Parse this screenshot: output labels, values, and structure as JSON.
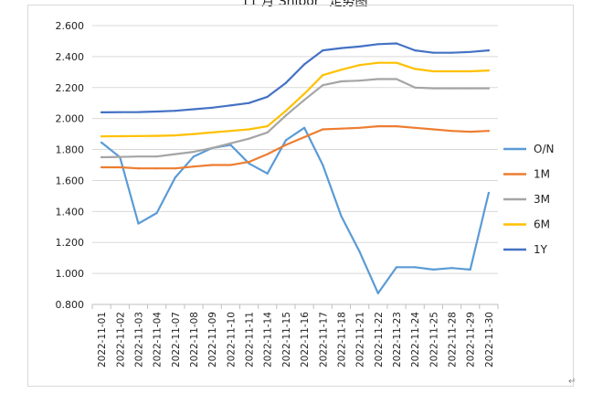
{
  "document": {
    "title": "\"11 月 Shibor\" 走势图",
    "paragraph_mark": "↵"
  },
  "chart_data": {
    "type": "line",
    "title": "",
    "xlabel": "",
    "ylabel": "",
    "ylim": [
      0.8,
      2.6
    ],
    "yticks": [
      "0.800",
      "1.000",
      "1.200",
      "1.400",
      "1.600",
      "1.800",
      "2.000",
      "2.200",
      "2.400",
      "2.600"
    ],
    "grid": true,
    "legend_position": "right",
    "x_tick_labels": [
      "2022-11-01",
      "2022-11-02",
      "2022-11-03",
      "2022-11-04",
      "2022-11-07",
      "2022-11-08",
      "2022-11-09",
      "2022-11-10",
      "2022-11-11",
      "2022-11-14",
      "2022-11-15",
      "2022-11-16",
      "2022-11-17",
      "2022-11-18",
      "2022-11-21",
      "2022-11-22",
      "2022-11-23",
      "2022-11-24",
      "2022-11-25",
      "2022-11-28",
      "2022-11-29",
      "2022-11-30"
    ],
    "series": [
      {
        "name": "O/N",
        "color": "#5b9bd5",
        "values": [
          1.845,
          1.75,
          1.322,
          1.39,
          1.62,
          1.755,
          1.81,
          1.83,
          1.71,
          1.645,
          1.86,
          1.94,
          1.7,
          1.37,
          1.14,
          0.872,
          1.04,
          1.04,
          1.025,
          1.035,
          1.025,
          1.52
        ]
      },
      {
        "name": "1M",
        "color": "#ed7d31",
        "values": [
          1.685,
          1.685,
          1.678,
          1.678,
          1.678,
          1.69,
          1.7,
          1.7,
          1.72,
          1.77,
          1.83,
          1.88,
          1.93,
          1.935,
          1.94,
          1.95,
          1.95,
          1.94,
          1.93,
          1.92,
          1.915,
          1.92
        ]
      },
      {
        "name": "3M",
        "color": "#a5a5a5",
        "values": [
          1.75,
          1.752,
          1.755,
          1.755,
          1.77,
          1.785,
          1.81,
          1.84,
          1.87,
          1.91,
          2.02,
          2.12,
          2.215,
          2.24,
          2.245,
          2.255,
          2.255,
          2.2,
          2.195,
          2.195,
          2.195,
          2.195
        ]
      },
      {
        "name": "6M",
        "color": "#ffc000",
        "values": [
          1.885,
          1.886,
          1.887,
          1.888,
          1.891,
          1.9,
          1.91,
          1.92,
          1.93,
          1.95,
          2.05,
          2.16,
          2.28,
          2.315,
          2.345,
          2.36,
          2.36,
          2.32,
          2.305,
          2.305,
          2.305,
          2.31
        ]
      },
      {
        "name": "1Y",
        "color": "#4472c4",
        "values": [
          2.04,
          2.041,
          2.042,
          2.045,
          2.05,
          2.06,
          2.07,
          2.085,
          2.1,
          2.14,
          2.23,
          2.35,
          2.44,
          2.455,
          2.465,
          2.48,
          2.485,
          2.44,
          2.425,
          2.425,
          2.43,
          2.44
        ]
      }
    ]
  }
}
